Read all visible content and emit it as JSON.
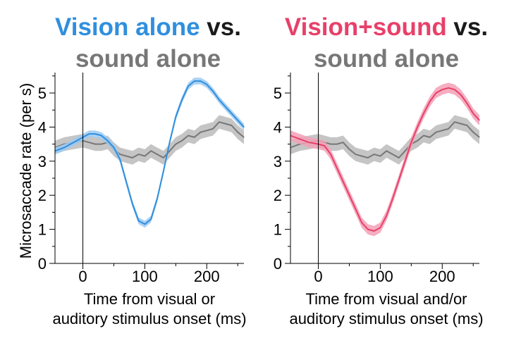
{
  "chart_data": [
    {
      "type": "line",
      "title": {
        "part1": "Vision alone",
        "part2": " vs.",
        "line2": "sound alone"
      },
      "xlabel": [
        "Time from visual or",
        "auditory stimulus onset (ms)"
      ],
      "ylabel": "Microsaccade rate (per s)",
      "xlim": [
        -45,
        260
      ],
      "ylim": [
        0,
        5.6
      ],
      "xticks": [
        "0",
        "100",
        "200"
      ],
      "yticks": [
        "0",
        "1",
        "2",
        "3",
        "4",
        "5"
      ],
      "series": [
        {
          "name": "sound alone",
          "color": "#777777",
          "band_color": "#bbbbbb",
          "x": [
            -45,
            -30,
            -15,
            0,
            10,
            20,
            30,
            40,
            50,
            60,
            70,
            80,
            90,
            100,
            110,
            120,
            130,
            140,
            150,
            160,
            170,
            180,
            190,
            200,
            210,
            220,
            230,
            240,
            250,
            260
          ],
          "y": [
            3.4,
            3.5,
            3.55,
            3.6,
            3.55,
            3.5,
            3.5,
            3.55,
            3.35,
            3.2,
            3.15,
            3.1,
            3.2,
            3.15,
            3.3,
            3.2,
            3.1,
            3.3,
            3.5,
            3.6,
            3.75,
            3.7,
            3.85,
            3.9,
            3.95,
            4.15,
            4.1,
            4.05,
            3.85,
            3.7
          ],
          "err": 0.2
        },
        {
          "name": "Vision alone",
          "color": "#2f8fdf",
          "band_color": "#9ccaf2",
          "x": [
            -45,
            -30,
            -15,
            0,
            10,
            20,
            30,
            40,
            50,
            60,
            70,
            80,
            90,
            100,
            110,
            120,
            130,
            140,
            150,
            160,
            170,
            180,
            190,
            200,
            210,
            220,
            230,
            240,
            250,
            260
          ],
          "y": [
            3.3,
            3.4,
            3.55,
            3.7,
            3.8,
            3.8,
            3.75,
            3.6,
            3.4,
            3.05,
            2.4,
            1.75,
            1.25,
            1.15,
            1.3,
            1.9,
            2.7,
            3.55,
            4.3,
            4.8,
            5.2,
            5.35,
            5.35,
            5.25,
            5.05,
            4.8,
            4.6,
            4.4,
            4.2,
            4.0
          ],
          "err": 0.1
        }
      ]
    },
    {
      "type": "line",
      "title": {
        "part1": "Vision+sound",
        "part2": " vs.",
        "line2": "sound alone"
      },
      "xlabel": [
        "Time from visual and/or",
        "auditory stimulus onset (ms)"
      ],
      "ylabel": "",
      "xlim": [
        -45,
        260
      ],
      "ylim": [
        0,
        5.6
      ],
      "xticks": [
        "0",
        "100",
        "200"
      ],
      "yticks": [
        "0",
        "1",
        "2",
        "3",
        "4",
        "5"
      ],
      "series": [
        {
          "name": "sound alone",
          "color": "#777777",
          "band_color": "#bbbbbb",
          "x": [
            -45,
            -30,
            -15,
            0,
            10,
            20,
            30,
            40,
            50,
            60,
            70,
            80,
            90,
            100,
            110,
            120,
            130,
            140,
            150,
            160,
            170,
            180,
            190,
            200,
            210,
            220,
            230,
            240,
            250,
            260
          ],
          "y": [
            3.4,
            3.5,
            3.55,
            3.6,
            3.55,
            3.5,
            3.5,
            3.55,
            3.35,
            3.2,
            3.15,
            3.1,
            3.2,
            3.15,
            3.3,
            3.2,
            3.1,
            3.3,
            3.5,
            3.6,
            3.75,
            3.7,
            3.85,
            3.9,
            3.95,
            4.15,
            4.1,
            4.05,
            3.85,
            3.7
          ],
          "err": 0.2
        },
        {
          "name": "Vision+sound",
          "color": "#e8406a",
          "band_color": "#f3a0b6",
          "x": [
            -45,
            -30,
            -15,
            0,
            10,
            20,
            30,
            40,
            50,
            60,
            70,
            80,
            90,
            100,
            110,
            120,
            130,
            140,
            150,
            160,
            170,
            180,
            190,
            200,
            210,
            220,
            230,
            240,
            250,
            260
          ],
          "y": [
            3.75,
            3.65,
            3.55,
            3.5,
            3.45,
            3.2,
            2.8,
            2.4,
            2.0,
            1.6,
            1.2,
            1.0,
            0.95,
            1.05,
            1.4,
            1.9,
            2.45,
            3.0,
            3.55,
            4.0,
            4.4,
            4.75,
            5.0,
            5.1,
            5.15,
            5.1,
            4.95,
            4.7,
            4.4,
            4.2
          ],
          "err": 0.15
        }
      ]
    }
  ]
}
